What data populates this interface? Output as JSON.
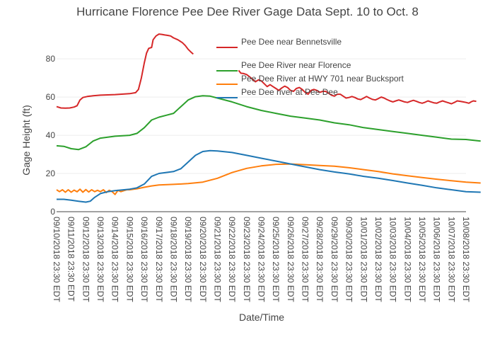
{
  "chart_data": {
    "type": "line",
    "title": "Hurricane Florence Pee Dee River Gage Data Sept. 10 to Oct. 8",
    "xlabel": "Date/Time",
    "ylabel": "Gage Height (ft)",
    "ylim": [
      0,
      96
    ],
    "yticks": [
      0,
      20,
      40,
      60,
      80
    ],
    "grid": true,
    "legend_position": "top-right",
    "x_tick_labels": [
      "09/10/2018 23:30 EDT",
      "09/11/2018 23:30 EDT",
      "09/12/2018 23:30 EDT",
      "09/13/2018 23:30 EDT",
      "09/14/2018 23:30 EDT",
      "09/15/2018 23:30 EDT",
      "09/16/2018 23:30 EDT",
      "09/17/2018 23:30 EDT",
      "09/18/2018 23:30 EDT",
      "09/19/2018 23:30 EDT",
      "09/20/2018 23:30 EDT",
      "09/21/2018 23:30 EDT",
      "09/22/2018 23:30 EDT",
      "09/23/2018 23:30 EDT",
      "09/24/2018 23:30 EDT",
      "09/25/2018 23:30 EDT",
      "09/26/2018 23:30 EDT",
      "09/27/2018 23:30 EDT",
      "09/28/2018 23:30 EDT",
      "09/29/2018 23:30 EDT",
      "09/30/2018 23:30 EDT",
      "10/01/2018 23:30 EDT",
      "10/02/2018 23:30 EDT",
      "10/03/2018 23:30 EDT",
      "10/04/2018 23:30 EDT",
      "10/05/2018 23:30 EDT",
      "10/06/2018 23:30 EDT",
      "10/07/2018 23:30 EDT",
      "10/08/2018 23:30 EDT"
    ],
    "x_unit_note": "x values are fractional day indices counted from the first tick label (09/10/2018 23:30 EDT = 0)",
    "series": [
      {
        "name": "Pee Dee near Bennetsville",
        "color": "#d62728",
        "segments": [
          [
            [
              0,
              55
            ],
            [
              0.3,
              54.3
            ],
            [
              0.6,
              54.2
            ],
            [
              0.9,
              54.3
            ],
            [
              1.2,
              54.8
            ],
            [
              1.4,
              55.5
            ],
            [
              1.6,
              58.5
            ],
            [
              1.8,
              59.8
            ],
            [
              2.1,
              60.3
            ],
            [
              2.5,
              60.7
            ],
            [
              3,
              61
            ],
            [
              4,
              61.3
            ],
            [
              5,
              61.8
            ],
            [
              5.4,
              62.3
            ],
            [
              5.6,
              64
            ],
            [
              5.8,
              70
            ],
            [
              6,
              78
            ],
            [
              6.15,
              83
            ],
            [
              6.3,
              85.5
            ],
            [
              6.5,
              86
            ],
            [
              6.6,
              90
            ],
            [
              6.8,
              92
            ],
            [
              7,
              93
            ],
            [
              7.2,
              92.8
            ],
            [
              7.4,
              92.5
            ],
            [
              7.6,
              92.3
            ],
            [
              7.8,
              92
            ],
            [
              8,
              91
            ],
            [
              8.3,
              90
            ],
            [
              8.6,
              88.5
            ],
            [
              8.8,
              87
            ],
            [
              9,
              85
            ],
            [
              9.2,
              83.5
            ],
            [
              9.35,
              82.5
            ]
          ],
          [
            [
              12.45,
              74
            ],
            [
              12.6,
              72.5
            ],
            [
              12.8,
              72.3
            ],
            [
              13,
              71.8
            ],
            [
              13.3,
              70
            ],
            [
              13.6,
              68
            ],
            [
              13.8,
              69
            ],
            [
              14,
              68.5
            ],
            [
              14.2,
              67
            ],
            [
              14.4,
              65.5
            ],
            [
              14.6,
              66.5
            ],
            [
              14.8,
              65.5
            ],
            [
              15,
              64.5
            ],
            [
              15.2,
              63.5
            ],
            [
              15.4,
              64.8
            ],
            [
              15.6,
              65.7
            ],
            [
              15.8,
              65
            ],
            [
              16,
              63.5
            ],
            [
              16.2,
              63
            ],
            [
              16.4,
              64.5
            ],
            [
              16.6,
              65
            ],
            [
              16.8,
              64
            ],
            [
              17,
              62.5
            ],
            [
              17.2,
              61.5
            ],
            [
              17.4,
              63.5
            ],
            [
              17.6,
              64
            ],
            [
              17.8,
              63.5
            ],
            [
              18,
              62.5
            ],
            [
              18.2,
              63
            ],
            [
              18.4,
              63
            ],
            [
              18.6,
              62
            ],
            [
              18.8,
              61
            ],
            [
              19,
              60.5
            ],
            [
              19.2,
              61.5
            ],
            [
              19.4,
              61.5
            ],
            [
              19.6,
              60.5
            ],
            [
              19.8,
              59.5
            ],
            [
              20,
              59.8
            ],
            [
              20.2,
              60.3
            ],
            [
              20.4,
              59.8
            ],
            [
              20.6,
              59
            ],
            [
              20.8,
              58.7
            ],
            [
              21,
              59.5
            ],
            [
              21.2,
              60.3
            ],
            [
              21.4,
              59.5
            ],
            [
              21.6,
              58.8
            ],
            [
              21.8,
              58.5
            ],
            [
              22,
              59.2
            ],
            [
              22.2,
              60
            ],
            [
              22.4,
              59.5
            ],
            [
              22.6,
              58.7
            ],
            [
              22.8,
              58
            ],
            [
              23,
              57.5
            ],
            [
              23.2,
              58
            ],
            [
              23.4,
              58.5
            ],
            [
              23.6,
              58
            ],
            [
              23.8,
              57.5
            ],
            [
              24,
              57.2
            ],
            [
              24.2,
              57.8
            ],
            [
              24.4,
              58.3
            ],
            [
              24.6,
              57.8
            ],
            [
              24.8,
              57.2
            ],
            [
              25,
              56.8
            ],
            [
              25.2,
              57.3
            ],
            [
              25.4,
              58
            ],
            [
              25.6,
              57.5
            ],
            [
              25.8,
              57
            ],
            [
              26,
              56.8
            ],
            [
              26.2,
              57.5
            ],
            [
              26.4,
              58
            ],
            [
              26.6,
              57.5
            ],
            [
              26.8,
              57
            ],
            [
              27,
              56.5
            ],
            [
              27.2,
              57.2
            ],
            [
              27.4,
              58
            ],
            [
              27.6,
              57.8
            ],
            [
              27.8,
              57.5
            ],
            [
              28,
              57.2
            ],
            [
              28.2,
              56.8
            ],
            [
              28.35,
              57.5
            ],
            [
              28.5,
              58
            ],
            [
              28.7,
              57.8
            ]
          ]
        ]
      },
      {
        "name": "Pee Dee River near Florence",
        "color": "#2ca02c",
        "segments": [
          [
            [
              0,
              34.5
            ],
            [
              0.5,
              34.2
            ],
            [
              1,
              33
            ],
            [
              1.5,
              32.5
            ],
            [
              2,
              34
            ],
            [
              2.5,
              37
            ],
            [
              3,
              38.5
            ],
            [
              4,
              39.5
            ],
            [
              5,
              40
            ],
            [
              5.5,
              41
            ],
            [
              6,
              44
            ],
            [
              6.5,
              48
            ],
            [
              7,
              49.5
            ],
            [
              7.5,
              50.5
            ],
            [
              8,
              51.5
            ],
            [
              8.5,
              55
            ],
            [
              9,
              58.5
            ],
            [
              9.5,
              60.2
            ],
            [
              10,
              60.7
            ],
            [
              10.5,
              60.5
            ],
            [
              11,
              59.5
            ],
            [
              12,
              57.5
            ],
            [
              13,
              55
            ],
            [
              14,
              53
            ],
            [
              15,
              51.5
            ],
            [
              16,
              50
            ],
            [
              17,
              49
            ],
            [
              18,
              48
            ],
            [
              19,
              46.5
            ],
            [
              20,
              45.5
            ],
            [
              21,
              44
            ],
            [
              22,
              43
            ],
            [
              23,
              42
            ],
            [
              24,
              41
            ],
            [
              25,
              40
            ],
            [
              26,
              39
            ],
            [
              27,
              38
            ],
            [
              28,
              37.8
            ],
            [
              29,
              37
            ]
          ]
        ]
      },
      {
        "name": "Pee Dee River at HWY 701 near Bucksport",
        "color": "#ff7f0e",
        "segments": [
          [
            [
              0,
              11.5
            ],
            [
              0.2,
              10.5
            ],
            [
              0.4,
              11.5
            ],
            [
              0.6,
              10.2
            ],
            [
              0.8,
              11.5
            ],
            [
              1,
              10.2
            ],
            [
              1.2,
              11.3
            ],
            [
              1.4,
              10.4
            ],
            [
              1.6,
              11.8
            ],
            [
              1.8,
              10.2
            ],
            [
              2,
              11.6
            ],
            [
              2.2,
              10.3
            ],
            [
              2.4,
              11.5
            ],
            [
              2.6,
              10.5
            ],
            [
              2.8,
              11.2
            ],
            [
              3,
              10.5
            ],
            [
              3.2,
              11.5
            ],
            [
              3.4,
              10
            ],
            [
              3.6,
              11.2
            ],
            [
              3.8,
              10.5
            ],
            [
              4,
              9
            ],
            [
              4.2,
              11.2
            ],
            [
              4.4,
              10.5
            ],
            [
              4.6,
              11
            ],
            [
              4.8,
              11.5
            ],
            [
              5,
              11.5
            ],
            [
              5.5,
              12
            ],
            [
              6,
              12.8
            ],
            [
              6.5,
              13.5
            ],
            [
              7,
              14
            ],
            [
              8,
              14.3
            ],
            [
              9,
              14.7
            ],
            [
              10,
              15.5
            ],
            [
              11,
              17.5
            ],
            [
              12,
              20.5
            ],
            [
              13,
              22.7
            ],
            [
              14,
              24
            ],
            [
              15,
              24.8
            ],
            [
              16,
              25
            ],
            [
              17,
              24.6
            ],
            [
              18,
              24.2
            ],
            [
              19,
              23.8
            ],
            [
              20,
              23
            ],
            [
              21,
              22
            ],
            [
              22,
              21
            ],
            [
              23,
              19.8
            ],
            [
              24,
              18.8
            ],
            [
              25,
              17.9
            ],
            [
              26,
              17
            ],
            [
              27,
              16.2
            ],
            [
              28,
              15.5
            ],
            [
              29,
              15
            ]
          ]
        ]
      },
      {
        "name": "Pee Dee river at Pee Dee",
        "color": "#1f77b4",
        "segments": [
          [
            [
              0,
              6.5
            ],
            [
              0.5,
              6.5
            ],
            [
              1,
              6
            ],
            [
              1.5,
              5.5
            ],
            [
              2,
              5
            ],
            [
              2.3,
              5.5
            ],
            [
              2.6,
              7.5
            ],
            [
              3,
              9.5
            ],
            [
              3.5,
              10.5
            ],
            [
              4,
              11
            ],
            [
              5,
              11.8
            ],
            [
              5.5,
              12.5
            ],
            [
              6,
              14.5
            ],
            [
              6.5,
              18.5
            ],
            [
              7,
              20
            ],
            [
              8,
              21
            ],
            [
              8.5,
              22.5
            ],
            [
              9,
              26
            ],
            [
              9.5,
              29.5
            ],
            [
              10,
              31.5
            ],
            [
              10.5,
              32
            ],
            [
              11,
              31.8
            ],
            [
              12,
              31
            ],
            [
              13,
              29.5
            ],
            [
              14,
              28
            ],
            [
              15,
              26.5
            ],
            [
              16,
              25
            ],
            [
              17,
              23.5
            ],
            [
              18,
              22
            ],
            [
              19,
              20.8
            ],
            [
              20,
              19.8
            ],
            [
              21,
              18.5
            ],
            [
              22,
              17.5
            ],
            [
              23,
              16.3
            ],
            [
              24,
              15
            ],
            [
              25,
              13.8
            ],
            [
              26,
              12.5
            ],
            [
              27,
              11.5
            ],
            [
              28,
              10.5
            ],
            [
              29,
              10.2
            ]
          ]
        ]
      }
    ]
  }
}
